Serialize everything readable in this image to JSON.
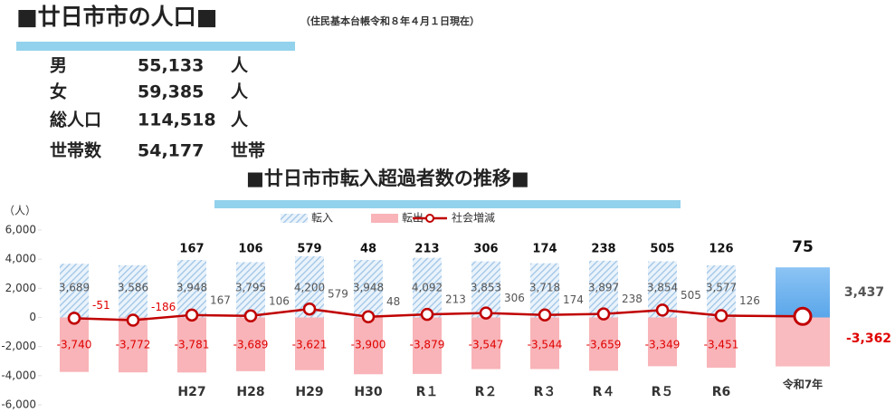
{
  "population": {
    "title": "■廿日市市の人口■",
    "note": "（住民基本台帳令和８年４月１日現在）",
    "rows": [
      [
        "男",
        "55,133",
        "人"
      ],
      [
        "女",
        "59,385",
        "人"
      ],
      [
        "総人口",
        "114,518",
        "人"
      ],
      [
        "世帯数",
        "54,177",
        "世帯"
      ]
    ]
  },
  "chart_data": {
    "type": "bar_line",
    "title": "■廿日市市転入超過者数の推移■",
    "y_label": "（人）",
    "categories": [
      null,
      null,
      "H27",
      "H28",
      "H29",
      "H30",
      "R１",
      "R２",
      "R３",
      "R４",
      "R５",
      "R6",
      "令和7年"
    ],
    "series": [
      {
        "name": "転入",
        "color": "#9dc3e6",
        "values": [
          3689,
          3586,
          3948,
          3795,
          4200,
          3948,
          4092,
          3853,
          3718,
          3897,
          3854,
          3577,
          3437
        ],
        "value_labels": [
          "3,689",
          "3,586",
          "3,948",
          "3,795",
          "4,200",
          "3,948",
          "4,092",
          "3,853",
          "3,718",
          "3,897",
          "3,854",
          "3,577",
          "3,437"
        ]
      },
      {
        "name": "転出",
        "color": "#f8b4b8",
        "values": [
          -3740,
          -3772,
          -3781,
          -3689,
          -3621,
          -3900,
          -3879,
          -3547,
          -3544,
          -3659,
          -3349,
          -3451,
          -3362
        ],
        "value_labels": [
          "-3,740",
          "-3,772",
          "-3,781",
          "-3,689",
          "-3,621",
          "-3,900",
          "-3,879",
          "-3,547",
          "-3,544",
          "-3,659",
          "-3,349",
          "-3,451",
          "-3,362"
        ]
      },
      {
        "name": "社会増減",
        "color": "#c00000",
        "values": [
          -51,
          -186,
          167,
          106,
          579,
          48,
          213,
          306,
          174,
          238,
          505,
          126,
          75
        ]
      }
    ],
    "ylim": [
      -6000,
      6000
    ],
    "yticks": [
      {
        "value": -6000,
        "label": "-6,000"
      },
      {
        "value": -4000,
        "label": "-4,000"
      },
      {
        "value": -2000,
        "label": "-2,000"
      },
      0,
      {
        "value": 2000,
        "label": "2,000"
      },
      {
        "value": 4000,
        "label": "4,000"
      },
      {
        "value": 6000,
        "label": "6,000"
      }
    ]
  }
}
